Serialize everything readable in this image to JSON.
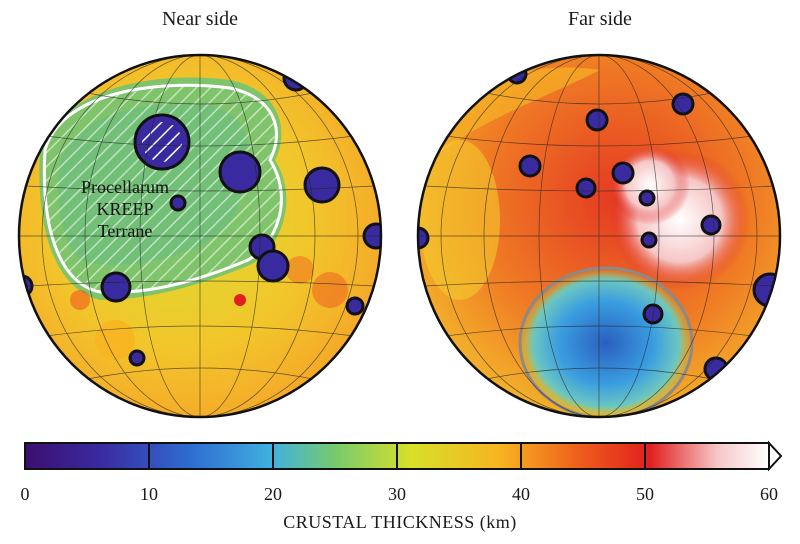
{
  "titles": {
    "near": "Near side",
    "far": "Far side"
  },
  "terrane_label": [
    "Procellarum",
    "KREEP",
    "Terrane"
  ],
  "colorbar": {
    "title": "CRUSTAL THICKNESS (km)",
    "ticks": [
      "0",
      "10",
      "20",
      "30",
      "40",
      "50",
      "60"
    ],
    "min": 0,
    "max": 60,
    "stops": [
      "#3b0f6f",
      "#3a2aa0",
      "#2f6bd0",
      "#3fb0e0",
      "#78cc6a",
      "#d8e02a",
      "#f7b320",
      "#ee5a1c",
      "#e0201e",
      "#f6c6c6",
      "#ffffff"
    ]
  },
  "colors": {
    "hatch": "#5a7fd6",
    "terrane_boundary": "#ffffff",
    "spa_ring": "#8a8a8a"
  }
}
